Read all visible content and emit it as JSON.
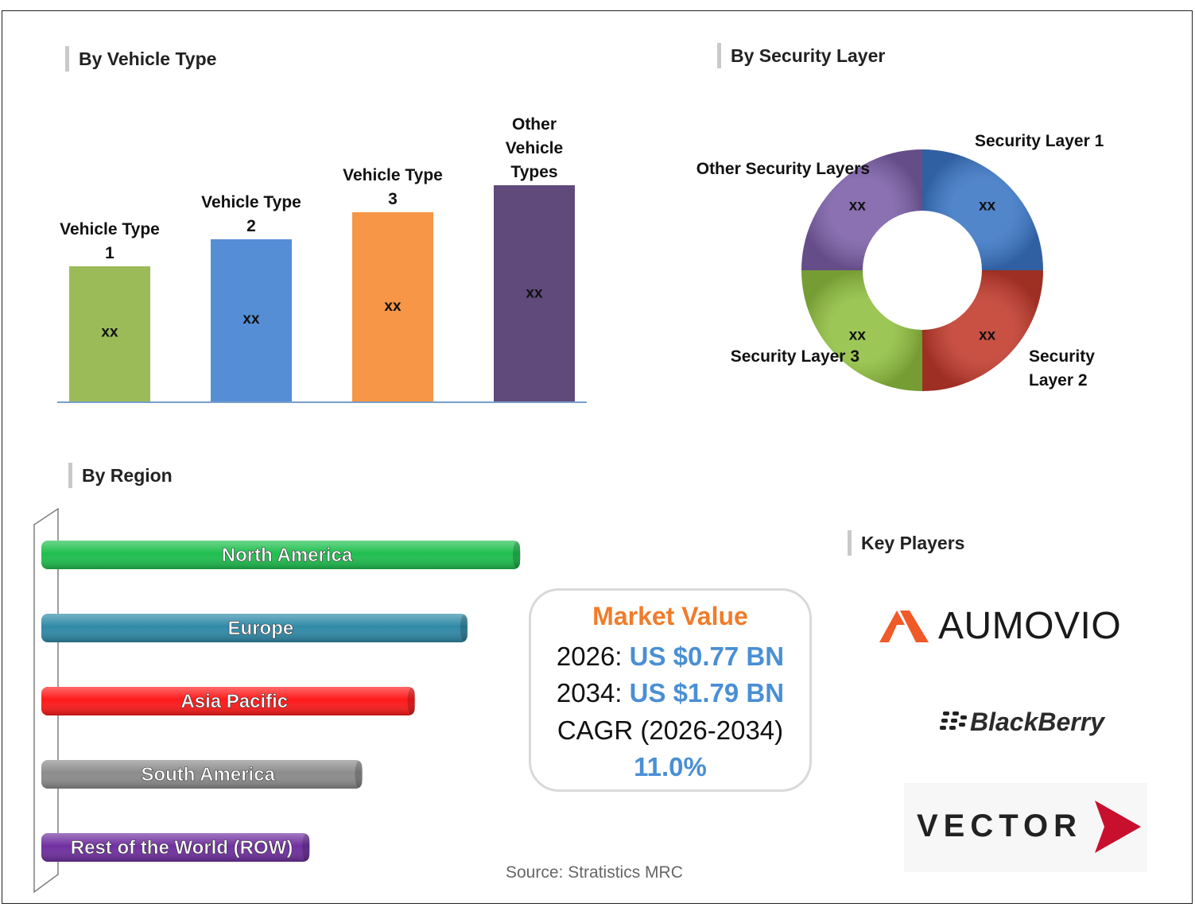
{
  "sections": {
    "vehicle_type": "By Vehicle Type",
    "security_layer": "By Security Layer",
    "region": "By Region",
    "key_players": "Key Players"
  },
  "market": {
    "title": "Market Value",
    "y2026_label": "2026:",
    "y2026_value": "US $0.77 BN",
    "y2034_label": "2034:",
    "y2034_value": "US $1.79 BN",
    "cagr_label": "CAGR (2026-2034)",
    "cagr_value": "11.0%"
  },
  "source": "Source: Stratistics MRC",
  "players": {
    "aumovio": "AUMOVIO",
    "blackberry": "BlackBerry",
    "vector": "VECTOR"
  },
  "colors": {
    "accent_orange": "#f07c2a",
    "accent_blue": "#4a8fd4"
  },
  "chart_data": [
    {
      "type": "bar",
      "title": "By Vehicle Type",
      "categories": [
        [
          "Vehicle Type",
          "1"
        ],
        [
          "Vehicle Type",
          "2"
        ],
        [
          "Vehicle Type",
          "3"
        ],
        [
          "Other",
          "Vehicle",
          "Types"
        ]
      ],
      "values": [
        1,
        1.2,
        1.4,
        1.6
      ],
      "data_labels": [
        "xx",
        "xx",
        "xx",
        "xx"
      ],
      "colors": [
        "#9bbb59",
        "#558ed5",
        "#f79646",
        "#604a7b"
      ]
    },
    {
      "type": "pie",
      "title": "By Security Layer",
      "categories": [
        "Security Layer 1",
        "Security Layer 2",
        "Security Layer 3",
        "Other Security Layers"
      ],
      "values": [
        25,
        25,
        25,
        25
      ],
      "data_labels": [
        "xx",
        "xx",
        "xx",
        "xx"
      ],
      "colors": [
        "#3a75c4",
        "#c0392b",
        "#8fbf3f",
        "#7b5ea7"
      ]
    },
    {
      "type": "bar",
      "title": "By Region",
      "orientation": "horizontal",
      "categories": [
        "North America",
        "Europe",
        "Asia Pacific",
        "South America",
        "Rest of the World (ROW)"
      ],
      "values": [
        100,
        89,
        78,
        67,
        56
      ],
      "colors": [
        "#1fbf4f",
        "#2f8aa8",
        "#ff1a1a",
        "#8c8c8c",
        "#7030a0"
      ]
    }
  ]
}
